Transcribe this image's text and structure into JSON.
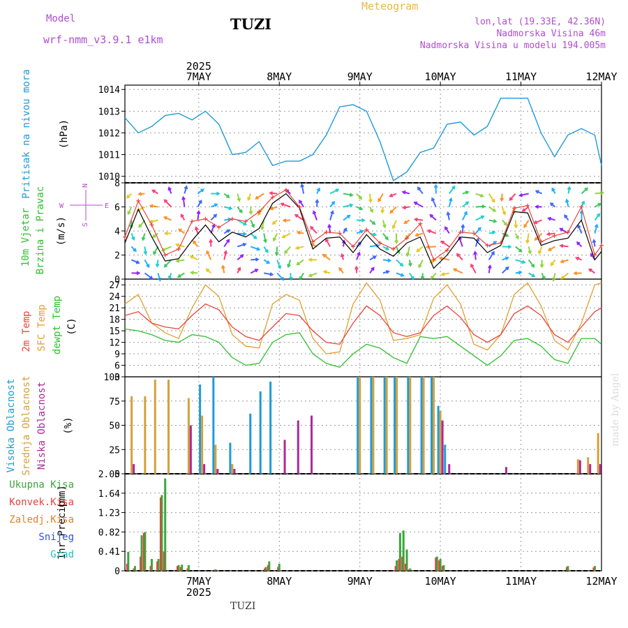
{
  "header": {
    "model_label": "Model",
    "model_name": "wrf-nmm_v3.9.1 e1km",
    "title": "TUZI",
    "chart_kind": "Meteogram",
    "coords": "lon,lat (19.33E, 42.36N)",
    "elevation": "Nadmorska Visina 46m",
    "model_elevation": "Nadmorska Visina u modelu 194.005m",
    "footer": "TUZI",
    "credit": "made by Angel"
  },
  "colors": {
    "pressure": "#1e9bd7",
    "wind_speed": "#000000",
    "wind_gust": "#e8443a",
    "temp2m": "#e8443a",
    "sfc_temp": "#e0a030",
    "dewpoint": "#2fbf2f",
    "high_cloud": "#1e9bd7",
    "mid_cloud": "#d4a03a",
    "low_cloud": "#b0289a",
    "total_precip": "#3aa63a",
    "conv_precip": "#e84040",
    "frozen_precip": "#e88020",
    "snow": "#3050e0",
    "hail": "#20c0c0",
    "direction_legend": "#b04cd0"
  },
  "chart_data": [
    {
      "type": "line",
      "panel": "pressure",
      "ylabel_parts": [
        "Pritisak na nivou mora",
        "(hPa)"
      ],
      "ylim": [
        1009.7,
        1014.2
      ],
      "yticks": [
        1010,
        1011,
        1012,
        1013,
        1014
      ],
      "grid": true,
      "x_axis": {
        "year": "2025",
        "start": "2025-05-06 14:00",
        "end": "2025-05-12 12:00",
        "ticks": [
          "7MAY",
          "8MAY",
          "9MAY",
          "10MAY",
          "11MAY",
          "12MAY"
        ]
      },
      "x": [
        "05-06 14:00",
        "05-06 18:00",
        "05-06 22:00",
        "05-07 02:00",
        "05-07 06:00",
        "05-07 10:00",
        "05-07 14:00",
        "05-07 18:00",
        "05-07 22:00",
        "05-08 02:00",
        "05-08 06:00",
        "05-08 10:00",
        "05-08 14:00",
        "05-08 18:00",
        "05-08 22:00",
        "05-09 02:00",
        "05-09 06:00",
        "05-09 10:00",
        "05-09 14:00",
        "05-09 18:00",
        "05-09 22:00",
        "05-10 02:00",
        "05-10 06:00",
        "05-10 10:00",
        "05-10 14:00",
        "05-10 18:00",
        "05-10 22:00",
        "05-11 02:00",
        "05-11 06:00",
        "05-11 10:00",
        "05-11 14:00",
        "05-11 18:00",
        "05-11 22:00",
        "05-12 02:00",
        "05-12 06:00",
        "05-12 10:00",
        "05-12 12:00"
      ],
      "series": [
        {
          "key": "pressure",
          "values": [
            1012.7,
            1012.0,
            1012.3,
            1012.8,
            1012.9,
            1012.6,
            1013.0,
            1012.4,
            1011.0,
            1011.1,
            1011.6,
            1010.5,
            1010.7,
            1010.7,
            1011.0,
            1011.9,
            1013.2,
            1013.3,
            1013.0,
            1011.6,
            1009.8,
            1010.2,
            1011.1,
            1011.3,
            1012.4,
            1012.5,
            1011.9,
            1012.3,
            1013.6,
            1013.6,
            1013.6,
            1012.0,
            1010.9,
            1011.9,
            1012.2,
            1011.9,
            1010.5
          ]
        }
      ]
    },
    {
      "type": "line",
      "panel": "wind",
      "ylabel_parts": [
        "10m Vjetar",
        "Brzina i Pravac",
        "(m/s)"
      ],
      "direction_legend": {
        "n": "N",
        "s": "S",
        "e": "E",
        "w": "W"
      },
      "ylim": [
        0,
        8
      ],
      "yticks": [
        0,
        2,
        4,
        6,
        8
      ],
      "grid": true,
      "x": [
        "05-06 14:00",
        "05-06 18:00",
        "05-06 22:00",
        "05-07 02:00",
        "05-07 06:00",
        "05-07 10:00",
        "05-07 14:00",
        "05-07 18:00",
        "05-07 22:00",
        "05-08 02:00",
        "05-08 06:00",
        "05-08 10:00",
        "05-08 14:00",
        "05-08 18:00",
        "05-08 22:00",
        "05-09 02:00",
        "05-09 06:00",
        "05-09 10:00",
        "05-09 14:00",
        "05-09 18:00",
        "05-09 22:00",
        "05-10 02:00",
        "05-10 06:00",
        "05-10 10:00",
        "05-10 14:00",
        "05-10 18:00",
        "05-10 22:00",
        "05-11 02:00",
        "05-11 06:00",
        "05-11 10:00",
        "05-11 14:00",
        "05-11 18:00",
        "05-11 22:00",
        "05-12 02:00",
        "05-12 06:00",
        "05-12 10:00",
        "05-12 12:00"
      ],
      "series": [
        {
          "key": "speed",
          "values": [
            3.0,
            5.8,
            3.5,
            1.5,
            1.7,
            3.2,
            4.5,
            3.1,
            3.9,
            3.5,
            4.2,
            6.3,
            7.1,
            5.9,
            2.5,
            3.4,
            3.5,
            2.2,
            3.7,
            2.5,
            1.9,
            3.0,
            3.5,
            0.9,
            2.0,
            3.5,
            3.4,
            2.2,
            2.8,
            5.6,
            5.5,
            2.8,
            3.2,
            3.4,
            4.9,
            1.6,
            2.3
          ]
        },
        {
          "key": "gust",
          "values": [
            3.5,
            6.5,
            4.5,
            2.0,
            2.5,
            4.8,
            5.0,
            4.3,
            5.0,
            4.8,
            5.6,
            6.8,
            7.4,
            6.0,
            3.1,
            3.9,
            3.8,
            2.7,
            4.1,
            3.0,
            2.5,
            3.4,
            4.6,
            1.6,
            2.4,
            3.9,
            3.8,
            2.8,
            3.0,
            5.9,
            6.1,
            3.1,
            3.6,
            3.9,
            6.0,
            2.0,
            2.8
          ]
        }
      ]
    },
    {
      "type": "line",
      "panel": "temperature",
      "ylabel_parts": [
        "2m Temp",
        "SFC Temp",
        "dewpt Temp",
        "(C)"
      ],
      "ylim": [
        3,
        28.5
      ],
      "yticks": [
        3,
        6,
        9,
        12,
        15,
        18,
        21,
        24,
        27
      ],
      "grid": true,
      "x": [
        "05-06 14:00",
        "05-06 18:00",
        "05-06 22:00",
        "05-07 02:00",
        "05-07 06:00",
        "05-07 10:00",
        "05-07 14:00",
        "05-07 18:00",
        "05-07 22:00",
        "05-08 02:00",
        "05-08 06:00",
        "05-08 10:00",
        "05-08 14:00",
        "05-08 18:00",
        "05-08 22:00",
        "05-09 02:00",
        "05-09 06:00",
        "05-09 10:00",
        "05-09 14:00",
        "05-09 18:00",
        "05-09 22:00",
        "05-10 02:00",
        "05-10 06:00",
        "05-10 10:00",
        "05-10 14:00",
        "05-10 18:00",
        "05-10 22:00",
        "05-11 02:00",
        "05-11 06:00",
        "05-11 10:00",
        "05-11 14:00",
        "05-11 18:00",
        "05-11 22:00",
        "05-12 02:00",
        "05-12 06:00",
        "05-12 10:00",
        "05-12 12:00"
      ],
      "series": [
        {
          "key": "temp2m",
          "values": [
            19.0,
            20.0,
            17.0,
            16.0,
            15.5,
            19.0,
            22.0,
            20.5,
            16.0,
            13.5,
            12.5,
            16.0,
            19.5,
            19.0,
            15.0,
            12.0,
            11.5,
            17.0,
            21.5,
            19.0,
            14.5,
            13.5,
            14.5,
            19.0,
            21.5,
            18.5,
            14.0,
            12.0,
            14.0,
            19.5,
            21.5,
            19.0,
            14.0,
            12.0,
            16.0,
            20.0,
            21.0
          ]
        },
        {
          "key": "sfc_temp",
          "values": [
            22.0,
            24.5,
            17.0,
            14.5,
            13.0,
            21.0,
            27.0,
            24.0,
            14.0,
            11.0,
            10.5,
            22.0,
            24.5,
            23.0,
            13.0,
            9.0,
            9.5,
            22.0,
            27.5,
            23.0,
            12.5,
            13.0,
            14.0,
            23.5,
            27.0,
            22.0,
            11.5,
            10.0,
            14.0,
            24.5,
            27.5,
            21.5,
            12.5,
            10.0,
            17.0,
            27.0,
            27.5
          ]
        },
        {
          "key": "dewpoint",
          "values": [
            15.5,
            15.0,
            14.0,
            12.5,
            12.0,
            14.0,
            13.5,
            12.0,
            8.0,
            6.0,
            6.5,
            12.0,
            14.0,
            14.5,
            9.0,
            6.5,
            5.5,
            9.0,
            11.5,
            10.5,
            8.0,
            6.5,
            13.5,
            13.0,
            13.5,
            11.0,
            8.5,
            6.0,
            8.5,
            12.5,
            13.0,
            11.0,
            7.5,
            6.5,
            13.0,
            13.0,
            11.5
          ]
        }
      ]
    },
    {
      "type": "bar",
      "panel": "cloud",
      "ylabel_parts": [
        "Visoka Oblacnost",
        "Srednja Oblacnost",
        "Niska Oblacnost",
        "(%)"
      ],
      "ylim": [
        0,
        100
      ],
      "yticks": [
        0,
        25,
        50,
        75,
        100
      ],
      "grid": true,
      "x": [
        "05-06 16:00",
        "05-06 20:00",
        "05-06 23:00",
        "05-07 03:00",
        "05-07 06:00",
        "05-07 09:00",
        "05-07 13:00",
        "05-07 17:00",
        "05-07 22:00",
        "05-08 02:00",
        "05-08 04:00",
        "05-08 07:00",
        "05-08 10:00",
        "05-08 13:00",
        "05-08 17:00",
        "05-08 21:00",
        "05-09 12:00",
        "05-09 16:00",
        "05-09 20:00",
        "05-09 23:00",
        "05-10 03:00",
        "05-10 07:00",
        "05-10 10:00",
        "05-10 12:00",
        "05-10 14:00",
        "05-11 07:00",
        "05-12 05:00",
        "05-12 08:00",
        "05-12 11:00"
      ],
      "series": [
        {
          "key": "high",
          "values": [
            0,
            0,
            0,
            0,
            0,
            0,
            92,
            100,
            32,
            0,
            62,
            85,
            95,
            0,
            0,
            0,
            100,
            100,
            100,
            100,
            100,
            100,
            100,
            70,
            30,
            0,
            0,
            0,
            0
          ]
        },
        {
          "key": "mid",
          "values": [
            80,
            80,
            97,
            97,
            0,
            78,
            60,
            30,
            10,
            0,
            0,
            0,
            0,
            0,
            0,
            0,
            100,
            100,
            100,
            100,
            100,
            100,
            100,
            65,
            0,
            0,
            15,
            17,
            42
          ]
        },
        {
          "key": "low",
          "values": [
            10,
            0,
            0,
            0,
            0,
            50,
            10,
            5,
            5,
            0,
            0,
            0,
            0,
            35,
            55,
            60,
            0,
            0,
            0,
            0,
            0,
            0,
            0,
            55,
            10,
            7,
            14,
            10,
            10
          ]
        }
      ]
    },
    {
      "type": "bar",
      "panel": "precip",
      "ylabel_parts": [
        "1hr Precip",
        "(mm)"
      ],
      "legend": [
        "Ukupna Kisa",
        "Konvek.Kisa",
        "Zaledj.Kisa",
        "Snijeg",
        "Grad"
      ],
      "ylim": [
        0,
        2.05
      ],
      "yticks": [
        0,
        0.41,
        0.82,
        1.23,
        1.64,
        2.05
      ],
      "grid": true,
      "x_axis": {
        "year": "2025",
        "ticks": [
          "7MAY",
          "8MAY",
          "9MAY",
          "10MAY",
          "11MAY",
          "12MAY"
        ]
      },
      "x": [
        "05-06 15:00",
        "05-06 17:00",
        "05-06 19:00",
        "05-06 20:00",
        "05-06 22:00",
        "05-07 00:00",
        "05-07 01:00",
        "05-07 02:00",
        "05-07 06:00",
        "05-07 07:00",
        "05-07 09:00",
        "05-07 17:00",
        "05-08 08:00",
        "05-08 09:00",
        "05-08 12:00",
        "05-09 23:00",
        "05-10 00:00",
        "05-10 01:00",
        "05-10 02:00",
        "05-10 03:00",
        "05-10 11:00",
        "05-10 12:00",
        "05-10 13:00",
        "05-12 02:00",
        "05-12 10:00"
      ],
      "series": [
        {
          "key": "total",
          "values": [
            0.4,
            0.1,
            0.75,
            0.82,
            0.25,
            0.25,
            1.6,
            1.95,
            0.12,
            0.13,
            0.12,
            0.03,
            0.08,
            0.2,
            0.15,
            0.22,
            0.8,
            0.85,
            0.45,
            0.05,
            0.3,
            0.25,
            0.12,
            0.1,
            0.1
          ]
        },
        {
          "key": "convective",
          "values": [
            0.15,
            0.05,
            0.3,
            0.8,
            0.1,
            0.2,
            1.55,
            0.4,
            0.1,
            0.08,
            0.05,
            0.02,
            0.05,
            0.12,
            0.08,
            0.1,
            0.25,
            0.3,
            0.15,
            0.03,
            0.28,
            0.22,
            0.1,
            0.08,
            0.07
          ]
        }
      ]
    }
  ]
}
